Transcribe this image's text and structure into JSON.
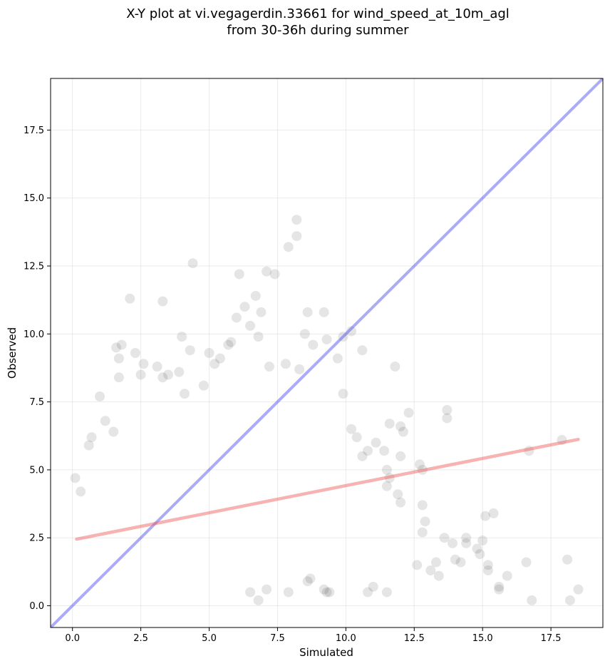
{
  "chart_data": {
    "type": "scatter",
    "title": "X-Y plot at vi.vegagerdin.33661 for wind_speed_at_10m_agl",
    "subtitle": "from 30-36h during summer",
    "xlabel": "Simulated",
    "ylabel": "Observed",
    "xlim": [
      -0.8,
      19.4
    ],
    "ylim": [
      -0.8,
      19.4
    ],
    "xticks": [
      0.0,
      2.5,
      5.0,
      7.5,
      10.0,
      12.5,
      15.0,
      17.5
    ],
    "yticks": [
      0.0,
      2.5,
      5.0,
      7.5,
      10.0,
      12.5,
      15.0,
      17.5
    ],
    "xtick_labels": [
      "0.0",
      "2.5",
      "5.0",
      "7.5",
      "10.0",
      "12.5",
      "15.0",
      "17.5"
    ],
    "ytick_labels": [
      "0.0",
      "2.5",
      "5.0",
      "7.5",
      "10.0",
      "12.5",
      "15.0",
      "17.5"
    ],
    "grid": true,
    "point_color": "#000000",
    "identity_line": {
      "x": [
        -0.8,
        19.4
      ],
      "y": [
        -0.8,
        19.4
      ],
      "color": "#4444ee"
    },
    "regression_line": {
      "x": [
        0.15,
        18.5
      ],
      "y": [
        2.45,
        6.12
      ],
      "color": "#ee5555"
    },
    "points": [
      [
        0.1,
        4.7
      ],
      [
        0.3,
        4.2
      ],
      [
        0.6,
        5.9
      ],
      [
        0.7,
        6.2
      ],
      [
        1.0,
        7.7
      ],
      [
        1.2,
        6.8
      ],
      [
        1.5,
        6.4
      ],
      [
        1.6,
        9.5
      ],
      [
        1.7,
        9.1
      ],
      [
        1.8,
        9.6
      ],
      [
        1.7,
        8.4
      ],
      [
        2.1,
        11.3
      ],
      [
        2.3,
        9.3
      ],
      [
        2.6,
        8.9
      ],
      [
        2.5,
        8.5
      ],
      [
        3.1,
        8.8
      ],
      [
        3.3,
        11.2
      ],
      [
        3.5,
        8.5
      ],
      [
        3.3,
        8.4
      ],
      [
        4.0,
        9.9
      ],
      [
        4.3,
        9.4
      ],
      [
        4.4,
        12.6
      ],
      [
        3.9,
        8.6
      ],
      [
        4.1,
        7.8
      ],
      [
        4.8,
        8.1
      ],
      [
        5.0,
        9.3
      ],
      [
        5.2,
        8.9
      ],
      [
        5.4,
        9.1
      ],
      [
        5.7,
        9.6
      ],
      [
        5.8,
        9.7
      ],
      [
        6.0,
        10.6
      ],
      [
        6.1,
        12.2
      ],
      [
        6.3,
        11.0
      ],
      [
        6.5,
        10.3
      ],
      [
        6.7,
        11.4
      ],
      [
        6.9,
        10.8
      ],
      [
        7.1,
        12.3
      ],
      [
        7.4,
        12.2
      ],
      [
        7.9,
        13.2
      ],
      [
        8.2,
        13.6
      ],
      [
        8.2,
        14.2
      ],
      [
        8.6,
        10.8
      ],
      [
        9.2,
        10.8
      ],
      [
        10.2,
        10.1
      ],
      [
        10.6,
        9.4
      ],
      [
        9.9,
        9.9
      ],
      [
        9.7,
        9.1
      ],
      [
        8.5,
        10.0
      ],
      [
        8.3,
        8.7
      ],
      [
        7.8,
        8.9
      ],
      [
        7.2,
        8.8
      ],
      [
        6.8,
        9.9
      ],
      [
        8.8,
        9.6
      ],
      [
        9.3,
        9.8
      ],
      [
        11.8,
        8.8
      ],
      [
        13.7,
        7.2
      ],
      [
        13.7,
        6.9
      ],
      [
        12.3,
        7.1
      ],
      [
        12.0,
        6.6
      ],
      [
        12.1,
        6.4
      ],
      [
        11.6,
        6.7
      ],
      [
        11.1,
        6.0
      ],
      [
        10.2,
        6.5
      ],
      [
        10.4,
        6.2
      ],
      [
        9.9,
        7.8
      ],
      [
        10.8,
        5.7
      ],
      [
        10.6,
        5.5
      ],
      [
        11.4,
        5.7
      ],
      [
        12.0,
        5.5
      ],
      [
        12.7,
        5.2
      ],
      [
        12.8,
        5.0
      ],
      [
        11.5,
        5.0
      ],
      [
        11.6,
        4.7
      ],
      [
        11.5,
        4.4
      ],
      [
        11.9,
        4.1
      ],
      [
        12.0,
        3.8
      ],
      [
        12.8,
        3.7
      ],
      [
        12.9,
        3.1
      ],
      [
        12.8,
        2.7
      ],
      [
        13.6,
        2.5
      ],
      [
        13.9,
        2.3
      ],
      [
        14.4,
        2.5
      ],
      [
        14.4,
        2.3
      ],
      [
        14.8,
        2.1
      ],
      [
        15.0,
        2.4
      ],
      [
        14.9,
        1.9
      ],
      [
        15.2,
        1.5
      ],
      [
        15.2,
        1.3
      ],
      [
        14.2,
        1.6
      ],
      [
        14.0,
        1.7
      ],
      [
        13.3,
        1.6
      ],
      [
        13.4,
        1.1
      ],
      [
        13.1,
        1.3
      ],
      [
        12.6,
        1.5
      ],
      [
        15.6,
        0.7
      ],
      [
        15.6,
        0.6
      ],
      [
        15.9,
        1.1
      ],
      [
        16.6,
        1.6
      ],
      [
        16.7,
        5.7
      ],
      [
        16.8,
        0.2
      ],
      [
        17.9,
        6.1
      ],
      [
        18.1,
        1.7
      ],
      [
        18.2,
        0.2
      ],
      [
        18.5,
        0.6
      ],
      [
        15.1,
        3.3
      ],
      [
        15.4,
        3.4
      ],
      [
        11.5,
        0.5
      ],
      [
        11.0,
        0.7
      ],
      [
        10.8,
        0.5
      ],
      [
        9.4,
        0.5
      ],
      [
        9.2,
        0.6
      ],
      [
        9.3,
        0.5
      ],
      [
        8.7,
        1.0
      ],
      [
        8.6,
        0.9
      ],
      [
        7.9,
        0.5
      ],
      [
        7.1,
        0.6
      ],
      [
        6.8,
        0.2
      ],
      [
        6.5,
        0.5
      ]
    ]
  }
}
